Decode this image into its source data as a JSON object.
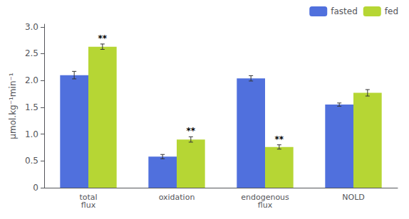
{
  "chart_data": {
    "type": "bar",
    "categories": [
      "total\nflux",
      "oxidation",
      "endogenous\nflux",
      "NOLD"
    ],
    "series": [
      {
        "name": "fasted",
        "values": [
          2.1,
          0.58,
          2.04,
          1.55
        ],
        "errors": [
          0.07,
          0.04,
          0.05,
          0.03
        ]
      },
      {
        "name": "fed",
        "values": [
          2.63,
          0.9,
          0.76,
          1.77
        ],
        "errors": [
          0.05,
          0.05,
          0.04,
          0.06
        ]
      }
    ],
    "ylabel": "µmol.kg⁻¹min⁻¹",
    "ylim": [
      0,
      3.05
    ],
    "yticks": [
      0,
      0.5,
      {
        "value": 1.0,
        "label": "1.0"
      },
      1.5,
      {
        "value": 2.0,
        "label": "2.0"
      },
      2.5,
      {
        "value": 3.0,
        "label": "3.0"
      }
    ],
    "annotations": [
      {
        "text": "**",
        "category": "total\nflux",
        "series": "fed"
      },
      {
        "text": "**",
        "category": "oxidation",
        "series": "fed"
      },
      {
        "text": "**",
        "category": "endogenous\nflux",
        "series": "fed"
      }
    ],
    "legend": "upper right",
    "grid": false
  }
}
